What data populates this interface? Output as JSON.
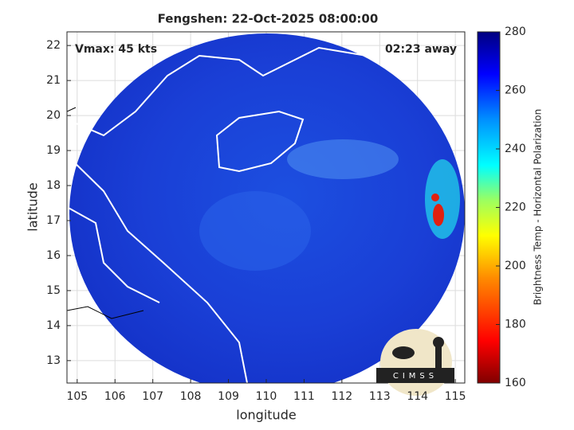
{
  "chart_data": {
    "type": "map",
    "title": "Fengshen: 22-Oct-2025 08:00:00",
    "annotations": [
      "Vmax: 45 kts",
      "02:23 away"
    ],
    "xlabel": "longitude",
    "ylabel": "latitude",
    "xlim": [
      104.73,
      115.25
    ],
    "xticks": [
      105,
      106,
      107,
      108,
      109,
      110,
      111,
      112,
      113,
      114,
      115
    ],
    "ylim": [
      12.36,
      22.39
    ],
    "yticks": [
      13,
      14,
      15,
      16,
      17,
      18,
      19,
      20,
      21,
      22
    ],
    "grid": true,
    "colorbar": {
      "label": "Brightness Temp - Horizontal Polarization",
      "lim": [
        160,
        280
      ],
      "ticks": [
        160,
        180,
        200,
        220,
        240,
        260,
        280
      ]
    },
    "logo": "CIMSS"
  }
}
